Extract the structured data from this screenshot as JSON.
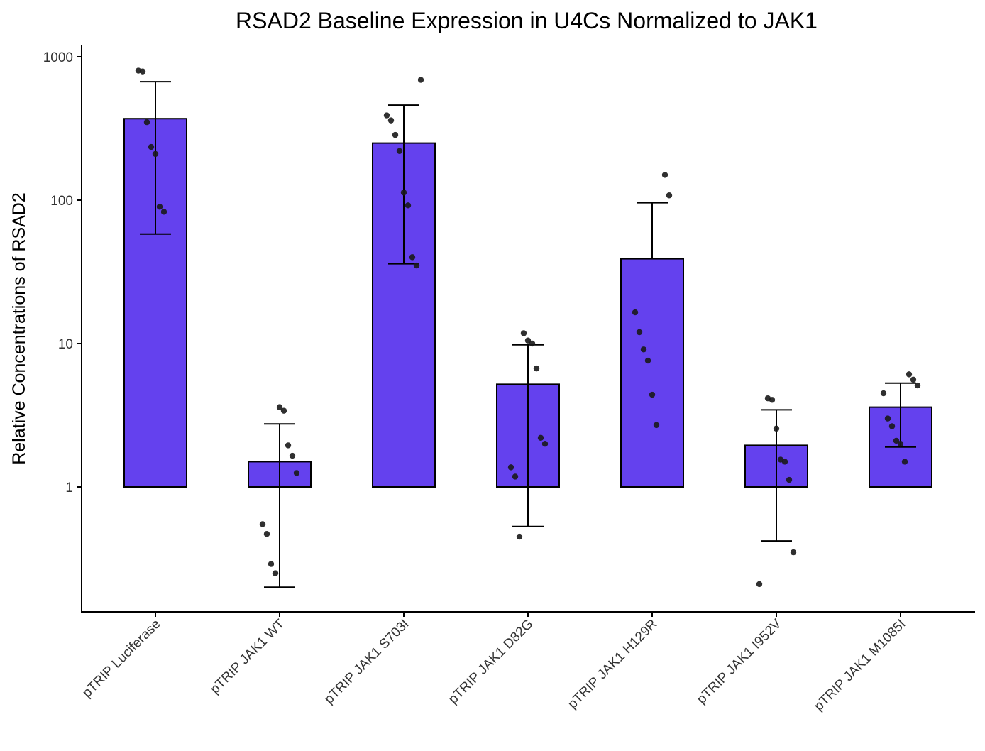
{
  "chart_data": {
    "type": "bar",
    "title": "RSAD2 Baseline Expression in U4Cs Normalized to JAK1",
    "xlabel": "",
    "ylabel": "Relative Concentrations of RSAD2",
    "y_scale": "log10",
    "ylim": [
      0.15,
      1100
    ],
    "y_ticks": [
      1,
      10,
      100,
      1000
    ],
    "y_tick_labels": [
      "1",
      "10",
      "100",
      "1000"
    ],
    "bar_baseline": 1,
    "grid": false,
    "legend": "none",
    "bar_color": "#6441EE",
    "categories": [
      "pTRIP Luciferase",
      "pTRIP JAK1 WT",
      "pTRIP JAK1 S703I",
      "pTRIP JAK1 D82G",
      "pTRIP JAK1 H129R",
      "pTRIP JAK1 I952V",
      "pTRIP JAK1 M1085I"
    ],
    "values": [
      370,
      1.5,
      250,
      5.2,
      39,
      1.95,
      3.6
    ],
    "error_bars": [
      {
        "low": 58,
        "high": 670
      },
      {
        "low": 0.2,
        "high": 2.75
      },
      {
        "low": 36,
        "high": 460
      },
      {
        "low": 0.53,
        "high": 9.8
      },
      {
        "low": null,
        "high": 96
      },
      {
        "low": 0.42,
        "high": 3.45
      },
      {
        "low": 1.9,
        "high": 5.3
      }
    ],
    "points": [
      [
        800,
        790,
        350,
        235,
        210,
        90,
        83
      ],
      [
        3.6,
        3.4,
        1.95,
        1.65,
        1.25,
        0.55,
        0.47,
        0.29,
        0.25
      ],
      [
        690,
        390,
        360,
        285,
        220,
        113,
        92,
        40,
        35
      ],
      [
        11.8,
        10.5,
        10.0,
        6.7,
        2.2,
        2.0,
        1.37,
        1.18,
        0.45
      ],
      [
        150,
        108,
        16.5,
        12.0,
        9.1,
        7.6,
        4.4,
        2.7
      ],
      [
        4.15,
        4.05,
        2.55,
        1.55,
        1.5,
        1.12,
        0.35,
        0.21
      ],
      [
        6.1,
        5.6,
        5.1,
        4.5,
        3.0,
        2.65,
        2.1,
        2.0,
        1.5
      ]
    ]
  }
}
